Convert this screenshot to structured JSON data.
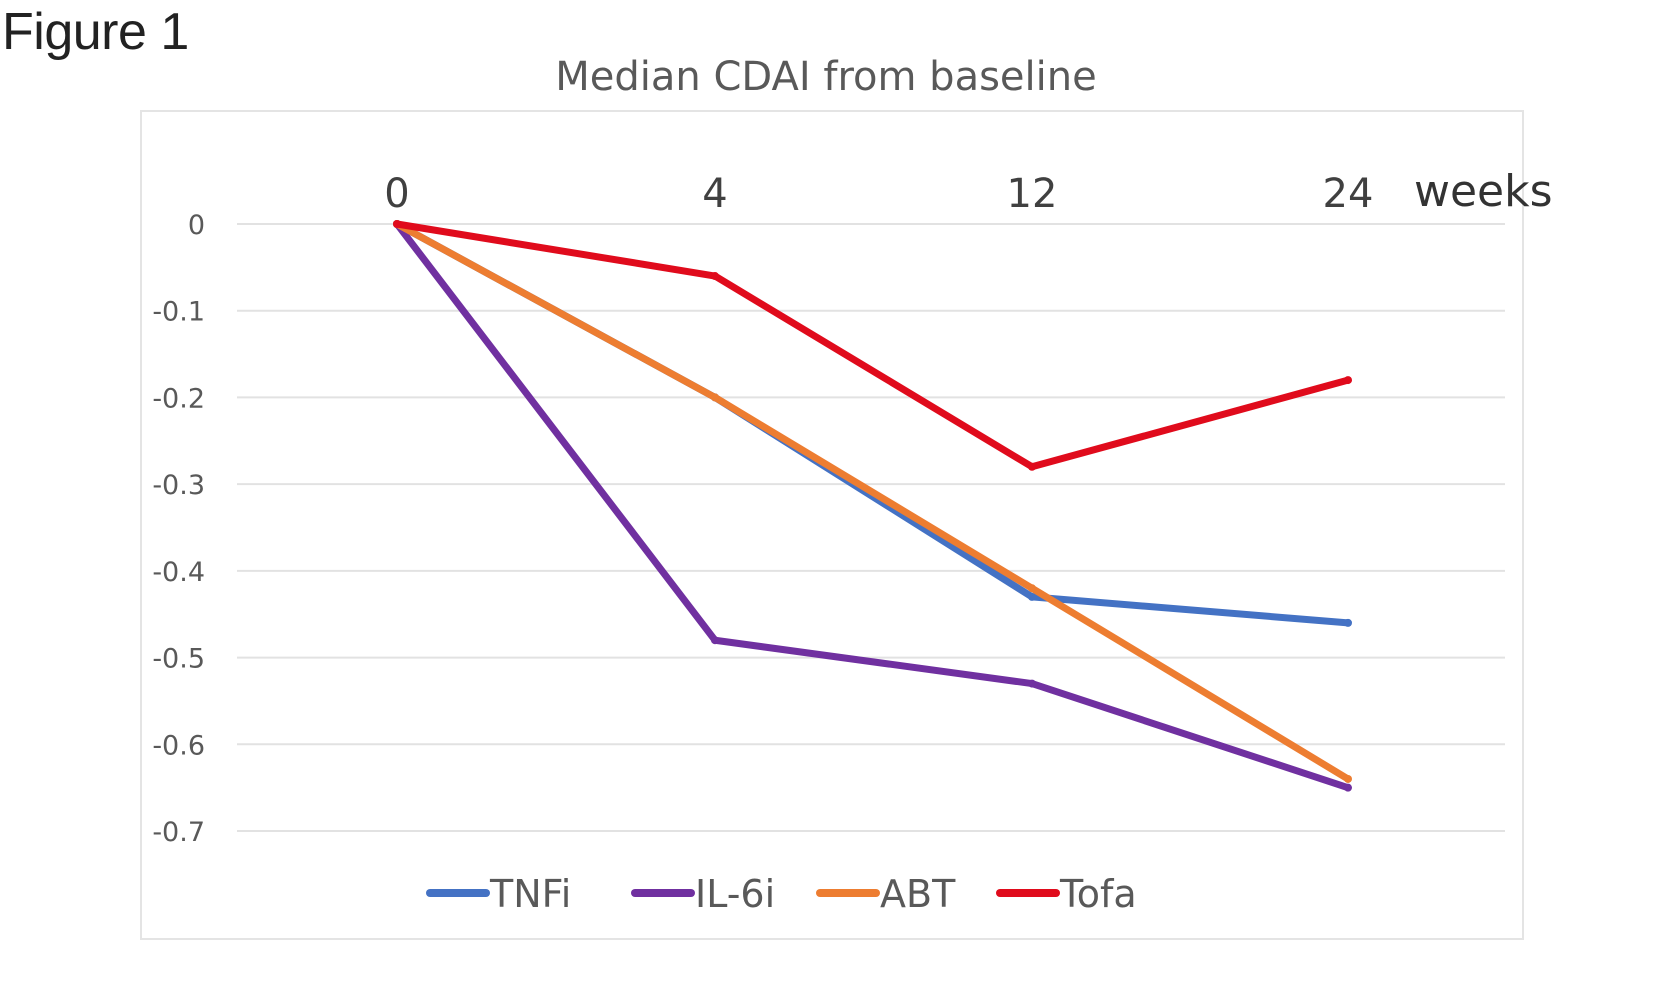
{
  "figure_label": "Figure 1",
  "chart_data": {
    "type": "line",
    "title": "Median CDAI from baseline",
    "categories": [
      "0",
      "4",
      "12",
      "24"
    ],
    "xlabel": "weeks",
    "ylabel": "",
    "ylim": [
      -0.7,
      0
    ],
    "yticks": [
      0,
      -0.1,
      -0.2,
      -0.3,
      -0.4,
      -0.5,
      -0.6,
      -0.7
    ],
    "ytick_labels": [
      "0",
      "-0.1",
      "-0.2",
      "-0.3",
      "-0.4",
      "-0.5",
      "-0.6",
      "-0.7"
    ],
    "x_axis_position": "top",
    "grid": true,
    "legend_position": "bottom",
    "series": [
      {
        "name": "TNFi",
        "color": "#4472c4",
        "values": [
          0,
          -0.2,
          -0.43,
          -0.46
        ]
      },
      {
        "name": "IL-6i",
        "color": "#7030a0",
        "values": [
          0,
          -0.48,
          -0.53,
          -0.65
        ]
      },
      {
        "name": "ABT",
        "color": "#ed7d31",
        "values": [
          0,
          -0.2,
          -0.42,
          -0.64
        ]
      },
      {
        "name": "Tofa",
        "color": "#e00b1c",
        "values": [
          0,
          -0.06,
          -0.28,
          -0.18
        ]
      }
    ]
  }
}
